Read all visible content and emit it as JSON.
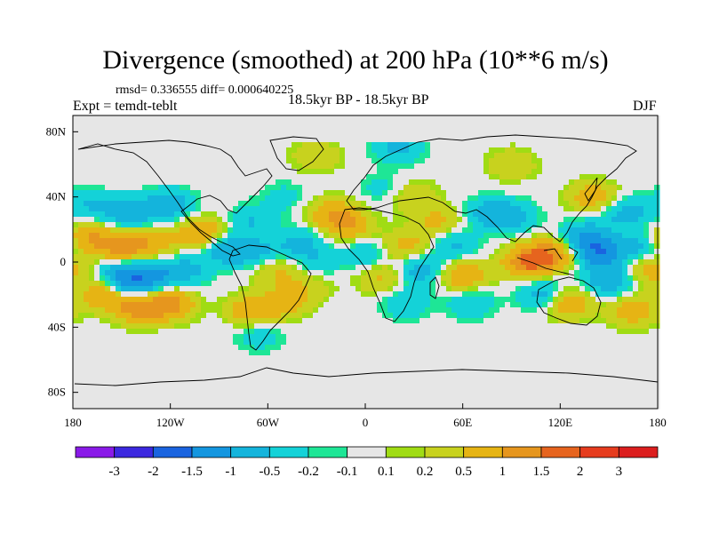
{
  "chart_data": {
    "type": "heatmap",
    "title": "Divergence (smoothed) at 200 hPa (10**6 m/s)",
    "stats_text": "rmsd= 0.336555 diff= 0.000640225",
    "experiment": "Expt = temdt-teblt",
    "period": "18.5kyr BP - 18.5kyr BP",
    "season": "DJF",
    "projection": "cylindrical equidistant",
    "xlim": [
      -180,
      180
    ],
    "ylim": [
      -90,
      90
    ],
    "x_ticks": [
      {
        "value": -180,
        "label": "180"
      },
      {
        "value": -120,
        "label": "120W"
      },
      {
        "value": -60,
        "label": "60W"
      },
      {
        "value": 0,
        "label": "0"
      },
      {
        "value": 60,
        "label": "60E"
      },
      {
        "value": 120,
        "label": "120E"
      },
      {
        "value": 180,
        "label": "180"
      }
    ],
    "y_ticks": [
      {
        "value": 80,
        "label": "80N"
      },
      {
        "value": 40,
        "label": "40N"
      },
      {
        "value": 0,
        "label": "0"
      },
      {
        "value": -40,
        "label": "40S"
      },
      {
        "value": -80,
        "label": "80S"
      }
    ],
    "levels": [
      -3,
      -2,
      -1.5,
      -1,
      -0.5,
      -0.2,
      -0.1,
      0.1,
      0.2,
      0.5,
      1,
      1.5,
      2,
      3
    ],
    "level_labels": [
      "-3",
      "-2",
      "-1.5",
      "-1",
      "-0.5",
      "-0.2",
      "-0.1",
      "0.1",
      "0.2",
      "0.5",
      "1",
      "1.5",
      "2",
      "3"
    ],
    "colors": [
      "#8a1ae8",
      "#3c28e0",
      "#1a64e0",
      "#1496e0",
      "#14b4dc",
      "#14d2d8",
      "#1ee696",
      "#e6e6e6",
      "#a0dc14",
      "#c8d21e",
      "#e6b414",
      "#e6961e",
      "#e6641e",
      "#e63c1e",
      "#dc1e1e"
    ],
    "coastline_color": "#000000",
    "features": [
      {
        "lon": -170,
        "lat": 15,
        "value": 1.0
      },
      {
        "lon": -150,
        "lat": 8,
        "value": 1.2
      },
      {
        "lon": -130,
        "lat": 12,
        "value": 0.8
      },
      {
        "lon": -160,
        "lat": -20,
        "value": 1.0
      },
      {
        "lon": -140,
        "lat": -28,
        "value": 1.3
      },
      {
        "lon": -120,
        "lat": -26,
        "value": 1.2
      },
      {
        "lon": -150,
        "lat": -5,
        "value": -0.8
      },
      {
        "lon": -130,
        "lat": -8,
        "value": -0.9
      },
      {
        "lon": -110,
        "lat": -5,
        "value": -0.6
      },
      {
        "lon": -145,
        "lat": -15,
        "value": -1.1
      },
      {
        "lon": -140,
        "lat": 30,
        "value": -0.6
      },
      {
        "lon": -120,
        "lat": 35,
        "value": -0.8
      },
      {
        "lon": -155,
        "lat": 32,
        "value": -0.5
      },
      {
        "lon": -175,
        "lat": 35,
        "value": -0.4
      },
      {
        "lon": -100,
        "lat": 18,
        "value": 1.0
      },
      {
        "lon": -85,
        "lat": 8,
        "value": -0.9
      },
      {
        "lon": -70,
        "lat": 25,
        "value": -0.5
      },
      {
        "lon": -65,
        "lat": 5,
        "value": -0.6
      },
      {
        "lon": -55,
        "lat": -5,
        "value": 0.6
      },
      {
        "lon": -50,
        "lat": -25,
        "value": 0.7
      },
      {
        "lon": -70,
        "lat": -30,
        "value": 0.9
      },
      {
        "lon": -65,
        "lat": -45,
        "value": -0.4
      },
      {
        "lon": -40,
        "lat": 12,
        "value": -0.6
      },
      {
        "lon": -30,
        "lat": 0,
        "value": -0.4
      },
      {
        "lon": -35,
        "lat": -15,
        "value": 0.4
      },
      {
        "lon": -20,
        "lat": 30,
        "value": 0.9
      },
      {
        "lon": -10,
        "lat": 22,
        "value": 0.8
      },
      {
        "lon": -50,
        "lat": 40,
        "value": -0.3
      },
      {
        "lon": 10,
        "lat": 45,
        "value": -0.3
      },
      {
        "lon": 0,
        "lat": 5,
        "value": -0.5
      },
      {
        "lon": 10,
        "lat": -10,
        "value": 0.6
      },
      {
        "lon": 25,
        "lat": 10,
        "value": 0.7
      },
      {
        "lon": 30,
        "lat": 40,
        "value": 0.5
      },
      {
        "lon": 35,
        "lat": -5,
        "value": -0.8
      },
      {
        "lon": 25,
        "lat": -25,
        "value": -0.5
      },
      {
        "lon": 45,
        "lat": 25,
        "value": 0.6
      },
      {
        "lon": 55,
        "lat": 10,
        "value": -0.6
      },
      {
        "lon": 60,
        "lat": -8,
        "value": 1.0
      },
      {
        "lon": 65,
        "lat": -25,
        "value": -0.5
      },
      {
        "lon": 75,
        "lat": 30,
        "value": -0.6
      },
      {
        "lon": 90,
        "lat": 28,
        "value": -0.7
      },
      {
        "lon": 100,
        "lat": 0,
        "value": 1.5
      },
      {
        "lon": 115,
        "lat": 5,
        "value": 1.2
      },
      {
        "lon": 110,
        "lat": -20,
        "value": -0.8
      },
      {
        "lon": 125,
        "lat": -25,
        "value": 1.0
      },
      {
        "lon": 135,
        "lat": 15,
        "value": -1.0
      },
      {
        "lon": 145,
        "lat": 5,
        "value": -1.3
      },
      {
        "lon": 150,
        "lat": -12,
        "value": -0.9
      },
      {
        "lon": 140,
        "lat": 40,
        "value": 0.8
      },
      {
        "lon": 160,
        "lat": 30,
        "value": -0.7
      },
      {
        "lon": 165,
        "lat": -30,
        "value": 0.8
      },
      {
        "lon": 170,
        "lat": 10,
        "value": -0.6
      },
      {
        "lon": 175,
        "lat": -5,
        "value": 0.7
      },
      {
        "lon": 20,
        "lat": 70,
        "value": -0.6
      },
      {
        "lon": -30,
        "lat": 65,
        "value": 0.5
      },
      {
        "lon": 90,
        "lat": 60,
        "value": 0.5
      }
    ]
  }
}
